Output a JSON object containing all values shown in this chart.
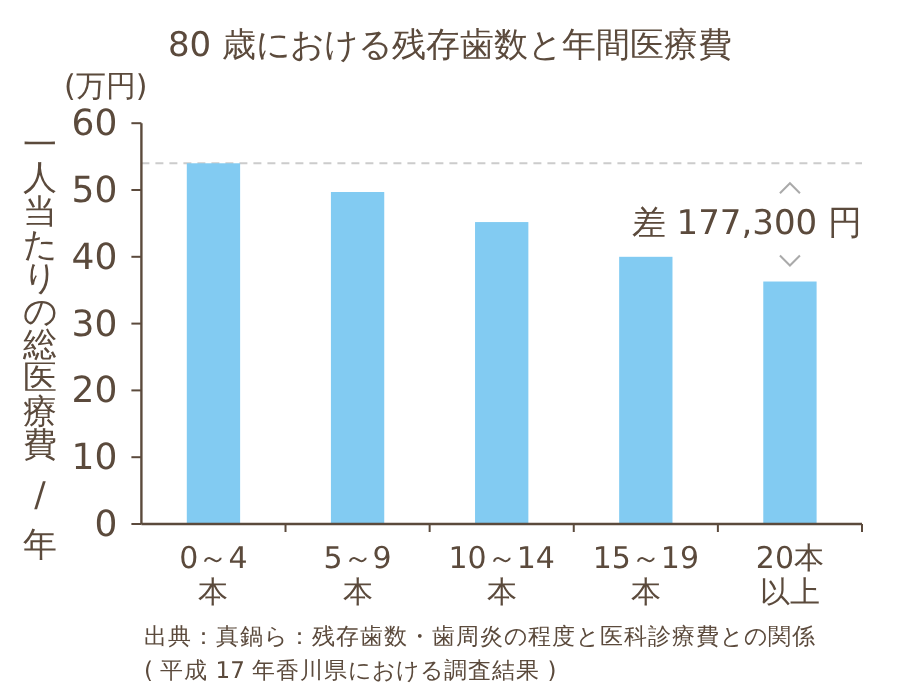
{
  "chart_data": {
    "type": "bar",
    "title": "80 歳における残存歯数と年間医療費",
    "ylabel": "一人当たりの総医療費 / 年",
    "annotations": [
      "(万円)",
      "差 177,300 円",
      "出典：真鍋ら：残存歯数・歯周炎の程度と医科診療費との関係",
      "( 平成 17 年香川県における調査結果 )"
    ],
    "categories": [
      "0～4本",
      "5～9本",
      "10～14本",
      "15～19本",
      "20本以上"
    ],
    "values": [
      54.0,
      49.7,
      45.2,
      40.0,
      36.3
    ],
    "color": "#82cbf2",
    "ylim": [
      0,
      60
    ],
    "yticks": [
      0,
      10,
      20,
      30,
      40,
      50,
      60
    ],
    "ref_lines": [
      {
        "axis": "y",
        "value": 54.0,
        "color": "#cccccc",
        "line_style": "dashed"
      }
    ]
  }
}
